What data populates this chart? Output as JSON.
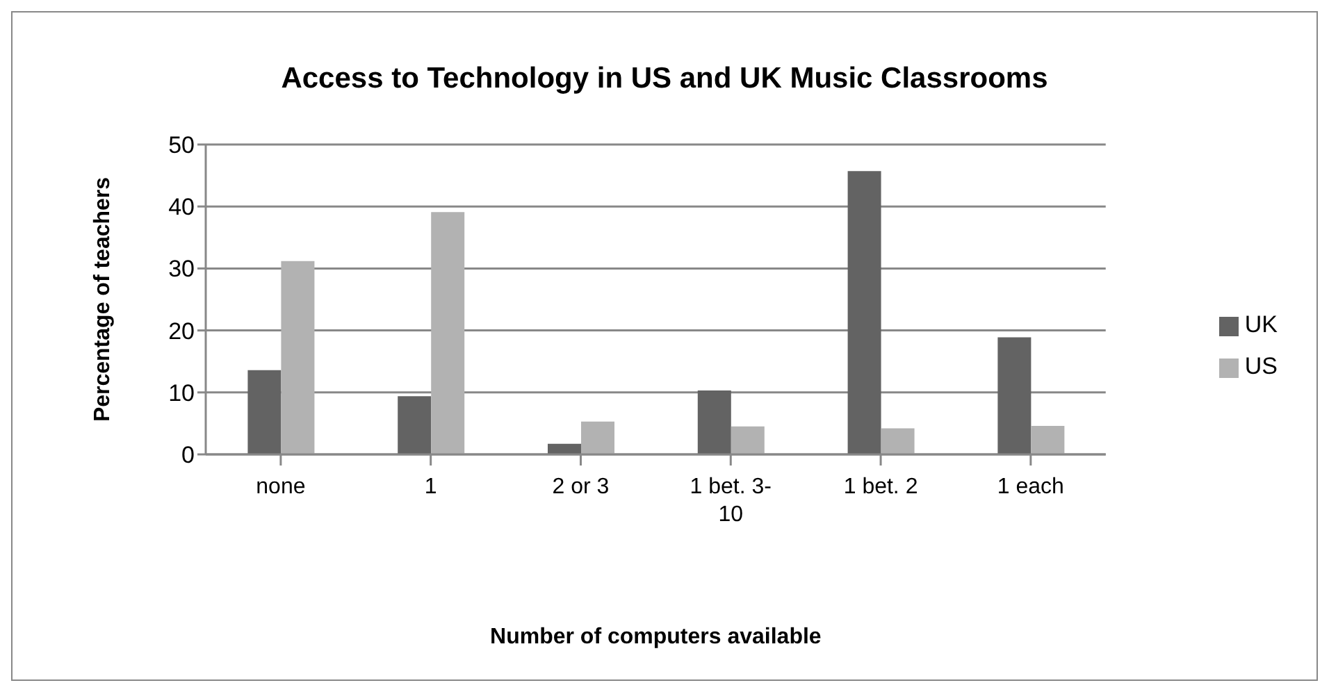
{
  "chart_data": {
    "type": "bar",
    "title": "Access to Technology in US and UK Music Classrooms",
    "xlabel": "Number of computers available",
    "ylabel": "Percentage of teachers",
    "categories": [
      "none",
      "1",
      "2 or 3",
      "1 bet. 3-10",
      "1 bet. 2",
      "1 each"
    ],
    "series": [
      {
        "name": "UK",
        "color": "#636363",
        "values": [
          13.6,
          9.4,
          1.7,
          10.3,
          45.7,
          18.9
        ]
      },
      {
        "name": "US",
        "color": "#b2b2b2",
        "values": [
          31.2,
          39.1,
          5.3,
          4.5,
          4.2,
          4.6
        ]
      }
    ],
    "ylim": [
      0,
      50
    ],
    "yticks": [
      0,
      10,
      20,
      30,
      40,
      50
    ],
    "grid": "y",
    "legend": "right"
  }
}
